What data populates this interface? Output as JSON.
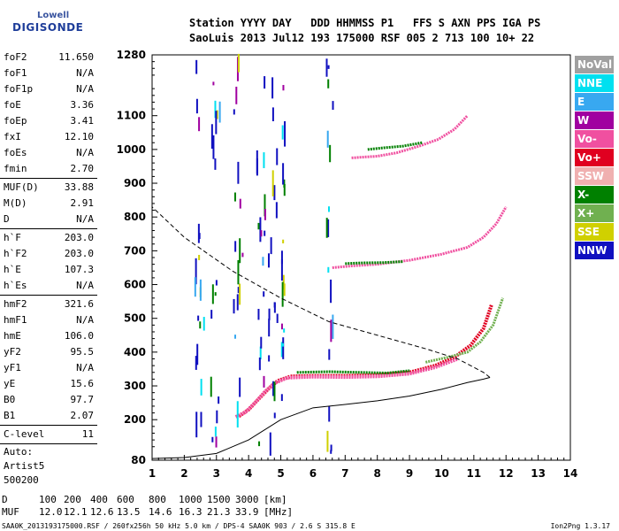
{
  "logo": {
    "top": "Lowell",
    "main": "DIGISONDE"
  },
  "header": {
    "line1": "Station YYYY DAY   DDD HHMMSS P1   FFS S AXN PPS IGA PS",
    "line2": "SaoLuis 2013 Jul12 193 175000 RSF 005 2 713 100 10+ 22"
  },
  "params_groups": [
    [
      {
        "label": "foF2",
        "value": "11.650"
      },
      {
        "label": "foF1",
        "value": "N/A"
      },
      {
        "label": "foF1p",
        "value": "N/A"
      },
      {
        "label": "foE",
        "value": "3.36"
      },
      {
        "label": "foEp",
        "value": "3.41"
      },
      {
        "label": "fxI",
        "value": "12.10"
      },
      {
        "label": "foEs",
        "value": "N/A"
      },
      {
        "label": "fmin",
        "value": "2.70"
      }
    ],
    [
      {
        "label": "MUF(D)",
        "value": "33.88"
      },
      {
        "label": "M(D)",
        "value": "2.91"
      },
      {
        "label": "D",
        "value": "N/A"
      }
    ],
    [
      {
        "label": "h`F",
        "value": "203.0"
      },
      {
        "label": "h`F2",
        "value": "203.0"
      },
      {
        "label": "h`E",
        "value": "107.3"
      },
      {
        "label": "h`Es",
        "value": "N/A"
      }
    ],
    [
      {
        "label": "hmF2",
        "value": "321.6"
      },
      {
        "label": "hmF1",
        "value": "N/A"
      },
      {
        "label": "hmE",
        "value": "106.0"
      },
      {
        "label": "yF2",
        "value": "95.5"
      },
      {
        "label": "yF1",
        "value": "N/A"
      },
      {
        "label": "yE",
        "value": "15.6"
      },
      {
        "label": "B0",
        "value": "97.7"
      },
      {
        "label": "B1",
        "value": "2.07"
      }
    ],
    [
      {
        "label": "C-level",
        "value": "11"
      }
    ]
  ],
  "auto": {
    "line1": "Auto:",
    "line2": "Artist5",
    "line3": "500200"
  },
  "legend": [
    {
      "label": "NoVal",
      "color": "#a0a0a0"
    },
    {
      "label": "NNE",
      "color": "#00e0f0"
    },
    {
      "label": "E",
      "color": "#38a8f0"
    },
    {
      "label": "W",
      "color": "#a000a0"
    },
    {
      "label": "Vo-",
      "color": "#f050a0"
    },
    {
      "label": "Vo+",
      "color": "#e00020"
    },
    {
      "label": "SSW",
      "color": "#f0b0b0"
    },
    {
      "label": "X-",
      "color": "#008000"
    },
    {
      "label": "X+",
      "color": "#70b050"
    },
    {
      "label": "SSE",
      "color": "#d0d000"
    },
    {
      "label": "NNW",
      "color": "#1010c0"
    }
  ],
  "chart_data": {
    "type": "scatter",
    "title": "",
    "xlabel": "",
    "ylabel": "",
    "xlim": [
      1,
      14
    ],
    "ylim": [
      80,
      1280
    ],
    "xticks": [
      "1",
      "2",
      "3",
      "4",
      "5",
      "6",
      "7",
      "8",
      "9",
      "10",
      "11",
      "12",
      "13",
      "14"
    ],
    "yticks": [
      "80",
      "200",
      "300",
      "400",
      "500",
      "600",
      "700",
      "800",
      "900",
      "1000",
      "1100",
      "1280"
    ],
    "grid": false,
    "legend_position": "right",
    "series": [
      {
        "color": "#e00020",
        "points": [
          [
            3.7,
            210
          ],
          [
            4.0,
            230
          ],
          [
            4.3,
            260
          ],
          [
            4.6,
            290
          ],
          [
            4.9,
            315
          ],
          [
            5.3,
            328
          ],
          [
            6,
            330
          ],
          [
            7,
            330
          ],
          [
            8,
            332
          ],
          [
            9,
            340
          ],
          [
            9.8,
            360
          ],
          [
            10.4,
            385
          ],
          [
            10.9,
            420
          ],
          [
            11.3,
            470
          ],
          [
            11.55,
            540
          ]
        ]
      },
      {
        "color": "#f050a0",
        "points": [
          [
            3.6,
            208
          ],
          [
            3.9,
            222
          ],
          [
            4.2,
            250
          ],
          [
            4.5,
            282
          ],
          [
            4.8,
            308
          ],
          [
            5.2,
            324
          ],
          [
            6,
            327
          ],
          [
            7,
            326
          ],
          [
            8,
            328
          ],
          [
            9,
            336
          ],
          [
            9.8,
            355
          ],
          [
            10.5,
            380
          ]
        ]
      },
      {
        "color": "#70b050",
        "points": [
          [
            9.5,
            370
          ],
          [
            10.2,
            385
          ],
          [
            10.8,
            400
          ],
          [
            11.2,
            430
          ],
          [
            11.6,
            480
          ],
          [
            11.9,
            560
          ]
        ]
      },
      {
        "color": "#008000",
        "points": [
          [
            5.5,
            340
          ],
          [
            6.5,
            342
          ],
          [
            7.5,
            340
          ],
          [
            8.3,
            338
          ],
          [
            9.0,
            345
          ]
        ]
      },
      {
        "color": "#f050a0",
        "points": [
          [
            6.6,
            650
          ],
          [
            7.2,
            655
          ],
          [
            8,
            660
          ],
          [
            9,
            672
          ],
          [
            10,
            690
          ],
          [
            10.8,
            710
          ],
          [
            11.3,
            740
          ],
          [
            11.7,
            780
          ],
          [
            12.0,
            830
          ]
        ]
      },
      {
        "color": "#008000",
        "points": [
          [
            7.0,
            662
          ],
          [
            7.5,
            664
          ],
          [
            8.2,
            665
          ],
          [
            8.8,
            668
          ]
        ]
      },
      {
        "color": "#f050a0",
        "points": [
          [
            7.2,
            975
          ],
          [
            8,
            980
          ],
          [
            8.6,
            990
          ],
          [
            9.3,
            1010
          ],
          [
            9.9,
            1030
          ],
          [
            10.4,
            1060
          ],
          [
            10.8,
            1100
          ]
        ]
      },
      {
        "color": "#008000",
        "points": [
          [
            7.7,
            1000
          ],
          [
            8.2,
            1005
          ],
          [
            8.8,
            1010
          ],
          [
            9.4,
            1020
          ]
        ]
      }
    ]
  },
  "footer": {
    "d_label": "D",
    "d_values": [
      "100",
      "200",
      "400",
      "600",
      "800",
      "1000",
      "1500",
      "3000",
      "[km]"
    ],
    "muf_label": "MUF",
    "muf_values": [
      "12.0",
      "12.1",
      "12.6",
      "13.5",
      "14.6",
      "16.3",
      "21.3",
      "33.9",
      "[MHz]"
    ],
    "filename": "SAA0K_2013193175000.RSF / 260fx256h 50 kHz 5.0 km / DPS-4 SAA0K 903 / 2.6 S 315.8 E",
    "version": "Ion2Png 1.3.17"
  }
}
